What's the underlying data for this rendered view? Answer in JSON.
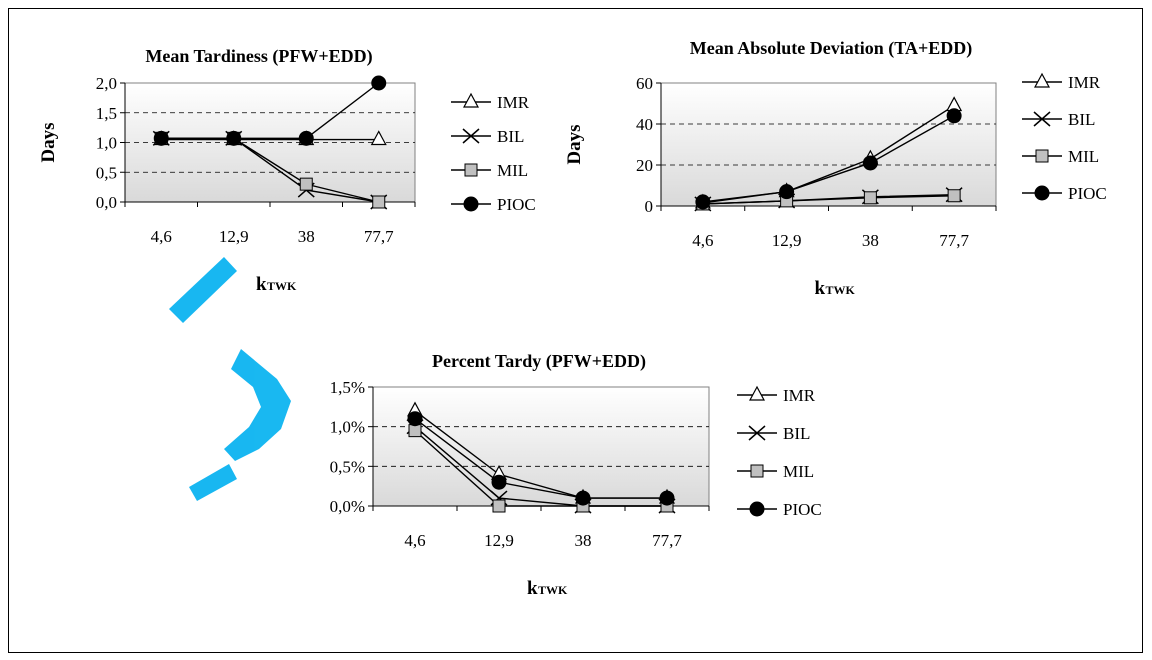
{
  "chart_data": [
    {
      "type": "line",
      "title": "Mean Tardiness (PFW+EDD)",
      "ylabel": "Days",
      "xlabel": "k",
      "xlabel_subscript": "TWK",
      "categories": [
        "4,6",
        "12,9",
        "38",
        "77,7"
      ],
      "ylim": [
        0,
        2
      ],
      "yticks": [
        "0,0",
        "0,5",
        "1,0",
        "1,5",
        "2,0"
      ],
      "grid": "dashed horizontal",
      "legend": "right",
      "series": [
        {
          "name": "IMR",
          "marker": "triangle",
          "values": [
            1.05,
            1.05,
            1.05,
            1.05
          ]
        },
        {
          "name": "BIL",
          "marker": "x",
          "values": [
            1.07,
            1.07,
            0.2,
            0.0
          ]
        },
        {
          "name": "MIL",
          "marker": "square",
          "values": [
            1.07,
            1.07,
            0.3,
            0.0
          ]
        },
        {
          "name": "PIOC",
          "marker": "circle",
          "values": [
            1.07,
            1.07,
            1.07,
            2.0
          ]
        }
      ]
    },
    {
      "type": "line",
      "title": "Mean Absolute Deviation (TA+EDD)",
      "ylabel": "Days",
      "xlabel": "k",
      "xlabel_subscript": "TWK",
      "categories": [
        "4,6",
        "12,9",
        "38",
        "77,7"
      ],
      "ylim": [
        0,
        60
      ],
      "yticks": [
        "0",
        "20",
        "40",
        "60"
      ],
      "grid": "dashed horizontal",
      "legend": "right",
      "series": [
        {
          "name": "IMR",
          "marker": "triangle",
          "values": [
            1.5,
            7,
            23,
            49
          ]
        },
        {
          "name": "BIL",
          "marker": "x",
          "values": [
            1,
            2.5,
            4.5,
            5.5
          ]
        },
        {
          "name": "MIL",
          "marker": "square",
          "values": [
            1,
            2.5,
            4,
            5
          ]
        },
        {
          "name": "PIOC",
          "marker": "circle",
          "values": [
            2,
            7,
            21,
            44
          ]
        }
      ]
    },
    {
      "type": "line",
      "title": "Percent Tardy (PFW+EDD)",
      "ylabel": "",
      "xlabel": "k",
      "xlabel_subscript": "TWK",
      "categories": [
        "4,6",
        "12,9",
        "38",
        "77,7"
      ],
      "ylim": [
        0,
        1.5
      ],
      "yticks": [
        "0,0%",
        "0,5%",
        "1,0%",
        "1,5%"
      ],
      "grid": "dashed horizontal",
      "legend": "right",
      "series": [
        {
          "name": "IMR",
          "marker": "triangle",
          "values": [
            1.2,
            0.4,
            0.1,
            0.1
          ]
        },
        {
          "name": "BIL",
          "marker": "x",
          "values": [
            1.0,
            0.1,
            0.0,
            0.0
          ]
        },
        {
          "name": "MIL",
          "marker": "square",
          "values": [
            0.95,
            0.0,
            0.0,
            0.0
          ]
        },
        {
          "name": "PIOC",
          "marker": "circle",
          "values": [
            1.1,
            0.3,
            0.1,
            0.1
          ]
        }
      ]
    }
  ],
  "colors": {
    "plot_background_top": "#ffffff",
    "plot_background_bottom": "#d9d9d9",
    "mil_marker_fill": "#c0c0c0",
    "watermark": "#00b0f0"
  }
}
